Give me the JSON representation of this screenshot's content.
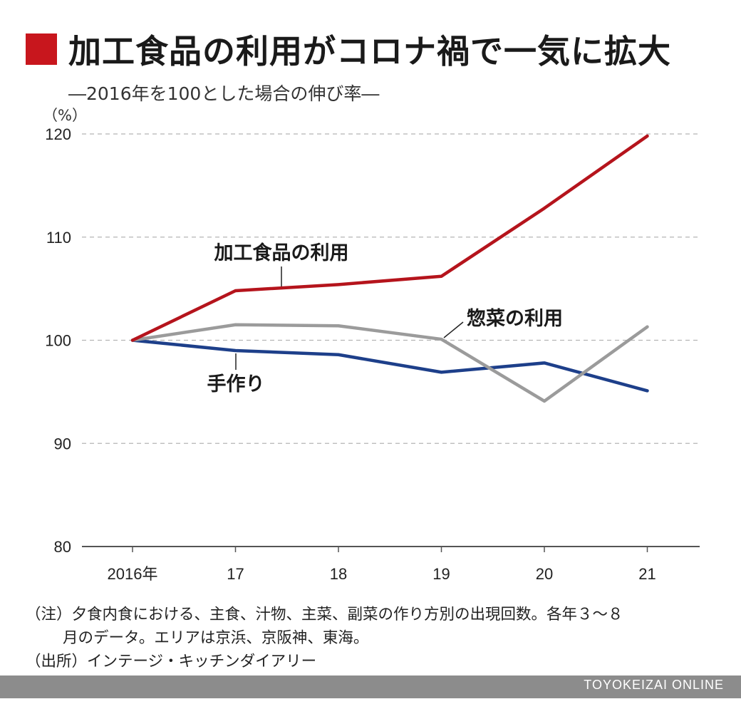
{
  "title": "加工食品の利用がコロナ禍で一気に拡大",
  "subtitle": "―2016年を100とした場合の伸び率―",
  "unit_label": "（%）",
  "colors": {
    "accent": "#c8161d",
    "processed": "#b5141c",
    "deli": "#9b9b9b",
    "homemade": "#1d3f8a",
    "grid": "#b5b5b5",
    "axis": "#555555",
    "footer": "#8c8c8c"
  },
  "chart_data": {
    "type": "line",
    "categories": [
      "2016年",
      "17",
      "18",
      "19",
      "20",
      "21"
    ],
    "ylim": [
      80,
      120
    ],
    "yticks": [
      80,
      90,
      100,
      110,
      120
    ],
    "grid": true,
    "series": [
      {
        "name": "加工食品の利用",
        "color_key": "processed",
        "values": [
          100,
          104.8,
          105.4,
          106.2,
          112.8,
          119.8
        ]
      },
      {
        "name": "惣菜の利用",
        "color_key": "deli",
        "values": [
          100,
          101.5,
          101.4,
          100.1,
          94.1,
          101.3
        ]
      },
      {
        "name": "手作り",
        "color_key": "homemade",
        "values": [
          100,
          99.0,
          98.6,
          96.9,
          97.8,
          95.1
        ]
      }
    ]
  },
  "notes": {
    "line1": "（注）夕食内食における、主食、汁物、主菜、副菜の作り方別の出現回数。各年３〜８",
    "line2": "月のデータ。エリアは京浜、京阪神、東海。",
    "source": "（出所）インテージ・キッチンダイアリー"
  },
  "brand": "TOYOKEIZAI ONLINE"
}
